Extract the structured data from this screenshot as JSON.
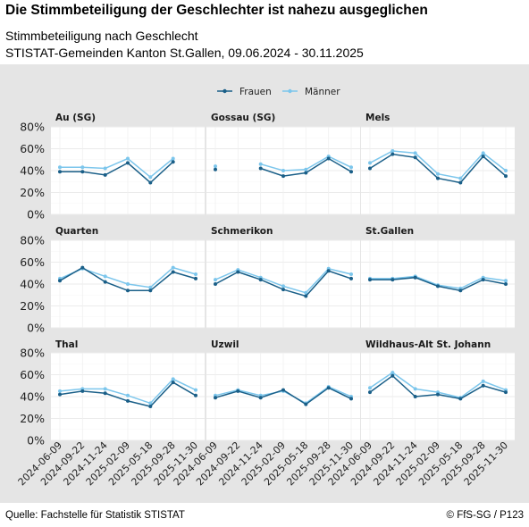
{
  "header": {
    "title": "Die Stimmbeteiligung der Geschlechter ist nahezu ausgeglichen",
    "subtitle_line1": "Stimmbeteiligung nach Geschlecht",
    "subtitle_line2": "STISTAT-Gemeinden Kanton St.Gallen, 09.06.2024 - 30.11.2025"
  },
  "footer": {
    "source": "Quelle: Fachstelle für Statistik STISTAT",
    "copyright": "© FfS-SG / P123"
  },
  "colors": {
    "frauen": "#1a5f88",
    "maenner": "#7cc6ec",
    "panel_bg": "#e5e5e5",
    "plot_bg": "#ffffff"
  },
  "chart_data": {
    "type": "line",
    "facets": [
      "Au (SG)",
      "Gossau (SG)",
      "Mels",
      "Quarten",
      "Schmerikon",
      "St.Gallen",
      "Thal",
      "Uzwil",
      "Wildhaus-Alt St. Johann"
    ],
    "x": [
      "2024-06-09",
      "2024-09-22",
      "2024-11-24",
      "2025-02-09",
      "2025-05-18",
      "2025-09-28",
      "2025-11-30"
    ],
    "y_ticks": [
      "0%",
      "20%",
      "40%",
      "60%",
      "80%"
    ],
    "ylim": [
      0,
      80
    ],
    "legend": {
      "position": "top",
      "entries": [
        "Frauen",
        "Männer"
      ]
    },
    "series": [
      {
        "name": "Frauen",
        "panels": {
          "Au (SG)": [
            39,
            39,
            36,
            47,
            29,
            48,
            null
          ],
          "Gossau (SG)": [
            41,
            null,
            42,
            35,
            38,
            51,
            39
          ],
          "Mels": [
            42,
            55,
            52,
            33,
            29,
            53,
            35
          ],
          "Quarten": [
            43,
            55,
            42,
            34,
            34,
            51,
            45
          ],
          "Schmerikon": [
            40,
            51,
            44,
            35,
            29,
            52,
            45
          ],
          "St.Gallen": [
            44,
            44,
            46,
            38,
            34,
            44,
            40
          ],
          "Thal": [
            42,
            45,
            43,
            36,
            31,
            53,
            41
          ],
          "Uzwil": [
            39,
            45,
            39,
            46,
            33,
            48,
            38
          ],
          "Wildhaus-Alt St. Johann": [
            44,
            59,
            40,
            42,
            38,
            50,
            44
          ]
        }
      },
      {
        "name": "Männer",
        "panels": {
          "Au (SG)": [
            43,
            43,
            42,
            51,
            34,
            51,
            null
          ],
          "Gossau (SG)": [
            44,
            null,
            46,
            40,
            41,
            53,
            43
          ],
          "Mels": [
            47,
            58,
            56,
            37,
            33,
            56,
            40
          ],
          "Quarten": [
            45,
            54,
            47,
            40,
            37,
            55,
            49
          ],
          "Schmerikon": [
            44,
            53,
            46,
            38,
            32,
            54,
            49
          ],
          "St.Gallen": [
            45,
            45,
            47,
            39,
            36,
            46,
            43
          ],
          "Thal": [
            45,
            47,
            47,
            41,
            34,
            56,
            46
          ],
          "Uzwil": [
            41,
            46,
            41,
            45,
            34,
            49,
            40
          ],
          "Wildhaus-Alt St. Johann": [
            48,
            62,
            47,
            44,
            39,
            54,
            46
          ]
        }
      }
    ]
  }
}
